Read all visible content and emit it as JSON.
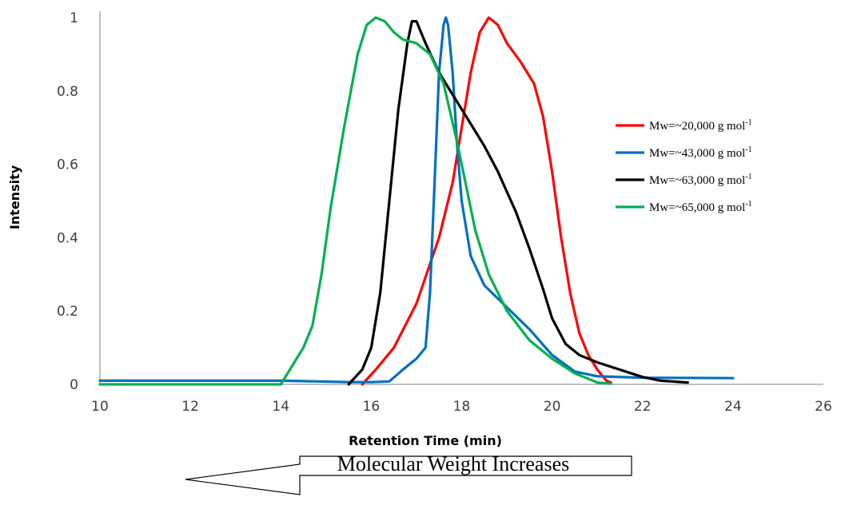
{
  "chart_data": {
    "type": "line",
    "xlabel": "Retention Time (min)",
    "ylabel": "Intensity",
    "xlim": [
      10,
      26
    ],
    "ylim": [
      0,
      1
    ],
    "xticks": [
      "10",
      "12",
      "14",
      "16",
      "18",
      "20",
      "22",
      "24",
      "26"
    ],
    "yticks": [
      "0",
      "0.2",
      "0.4",
      "0.6",
      "0.8",
      "1"
    ],
    "grid": false,
    "legend_position": "top-right",
    "series": [
      {
        "name": "Mw=~20,000 g mol",
        "name_superscript": "-1",
        "color": "#ff0000",
        "points": [
          [
            15.8,
            0
          ],
          [
            16.1,
            0.04
          ],
          [
            16.5,
            0.1
          ],
          [
            17.0,
            0.22
          ],
          [
            17.5,
            0.4
          ],
          [
            17.8,
            0.55
          ],
          [
            18.0,
            0.7
          ],
          [
            18.2,
            0.85
          ],
          [
            18.4,
            0.96
          ],
          [
            18.6,
            1.0
          ],
          [
            18.8,
            0.98
          ],
          [
            19.0,
            0.93
          ],
          [
            19.3,
            0.88
          ],
          [
            19.6,
            0.82
          ],
          [
            19.8,
            0.73
          ],
          [
            20.0,
            0.58
          ],
          [
            20.2,
            0.4
          ],
          [
            20.4,
            0.25
          ],
          [
            20.6,
            0.14
          ],
          [
            20.8,
            0.08
          ],
          [
            21.0,
            0.04
          ],
          [
            21.2,
            0.01
          ],
          [
            21.3,
            0.005
          ]
        ]
      },
      {
        "name": "Mw=~43,000 g mol",
        "name_superscript": "-1",
        "color": "#0070c0",
        "points": [
          [
            10,
            0.01
          ],
          [
            14,
            0.01
          ],
          [
            14.8,
            0.008
          ],
          [
            15.5,
            0.006
          ],
          [
            16.0,
            0.006
          ],
          [
            16.4,
            0.008
          ],
          [
            16.7,
            0.04
          ],
          [
            17.0,
            0.07
          ],
          [
            17.2,
            0.1
          ],
          [
            17.3,
            0.25
          ],
          [
            17.4,
            0.55
          ],
          [
            17.5,
            0.85
          ],
          [
            17.6,
            0.98
          ],
          [
            17.65,
            1.0
          ],
          [
            17.7,
            0.98
          ],
          [
            17.8,
            0.85
          ],
          [
            17.9,
            0.65
          ],
          [
            18.0,
            0.5
          ],
          [
            18.2,
            0.35
          ],
          [
            18.5,
            0.27
          ],
          [
            19.0,
            0.21
          ],
          [
            19.5,
            0.15
          ],
          [
            20.0,
            0.08
          ],
          [
            20.5,
            0.035
          ],
          [
            21.0,
            0.022
          ],
          [
            22.0,
            0.018
          ],
          [
            24.0,
            0.017
          ]
        ]
      },
      {
        "name": "Mw=~63,000 g mol",
        "name_superscript": "-1",
        "color": "#000000",
        "points": [
          [
            15.5,
            0
          ],
          [
            15.8,
            0.04
          ],
          [
            16.0,
            0.1
          ],
          [
            16.2,
            0.25
          ],
          [
            16.4,
            0.5
          ],
          [
            16.6,
            0.75
          ],
          [
            16.8,
            0.93
          ],
          [
            16.9,
            0.99
          ],
          [
            17.0,
            0.99
          ],
          [
            17.2,
            0.93
          ],
          [
            17.5,
            0.85
          ],
          [
            17.8,
            0.79
          ],
          [
            18.1,
            0.73
          ],
          [
            18.5,
            0.65
          ],
          [
            18.8,
            0.58
          ],
          [
            19.2,
            0.47
          ],
          [
            19.5,
            0.37
          ],
          [
            19.8,
            0.26
          ],
          [
            20.0,
            0.18
          ],
          [
            20.3,
            0.11
          ],
          [
            20.6,
            0.08
          ],
          [
            21.0,
            0.06
          ],
          [
            21.5,
            0.04
          ],
          [
            22.0,
            0.02
          ],
          [
            22.4,
            0.01
          ],
          [
            23.0,
            0.005
          ]
        ]
      },
      {
        "name": "Mw=~65,000 g mol",
        "name_superscript": "-1",
        "color": "#00b050",
        "points": [
          [
            10,
            0
          ],
          [
            14,
            0
          ],
          [
            14.1,
            0.02
          ],
          [
            14.3,
            0.06
          ],
          [
            14.5,
            0.1
          ],
          [
            14.7,
            0.16
          ],
          [
            14.9,
            0.3
          ],
          [
            15.1,
            0.48
          ],
          [
            15.4,
            0.7
          ],
          [
            15.7,
            0.9
          ],
          [
            15.9,
            0.98
          ],
          [
            16.1,
            1.0
          ],
          [
            16.3,
            0.99
          ],
          [
            16.5,
            0.96
          ],
          [
            16.7,
            0.94
          ],
          [
            17.0,
            0.93
          ],
          [
            17.3,
            0.9
          ],
          [
            17.6,
            0.82
          ],
          [
            17.9,
            0.66
          ],
          [
            18.1,
            0.54
          ],
          [
            18.3,
            0.42
          ],
          [
            18.6,
            0.3
          ],
          [
            19.0,
            0.2
          ],
          [
            19.5,
            0.12
          ],
          [
            20.0,
            0.07
          ],
          [
            20.5,
            0.03
          ],
          [
            21.0,
            0.005
          ],
          [
            21.3,
            0.002
          ]
        ]
      }
    ]
  },
  "annotation": {
    "text": "Molecular Weight Increases",
    "direction": "left"
  }
}
